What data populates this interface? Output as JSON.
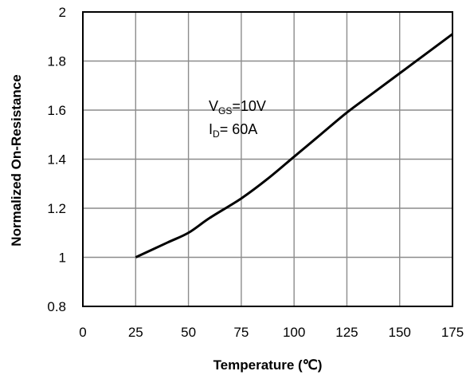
{
  "chart_data": {
    "type": "line",
    "title": "",
    "xlabel": "Temperature (℃)",
    "ylabel": "Normalized On-Resistance",
    "xlim": [
      0,
      175
    ],
    "ylim": [
      0.8,
      2
    ],
    "x_ticks": [
      "0",
      "25",
      "50",
      "75",
      "100",
      "125",
      "150",
      "175"
    ],
    "y_ticks": [
      "0.8",
      "1",
      "1.2",
      "1.4",
      "1.6",
      "1.8",
      "2"
    ],
    "grid": true,
    "annotation": {
      "line1": {
        "prefix": "V",
        "sub": "GS",
        "suffix": "=10V"
      },
      "line2": {
        "prefix": "I",
        "sub": "D",
        "suffix": "= 60A"
      }
    },
    "series": [
      {
        "x": [
          25,
          40,
          50,
          60,
          75,
          87.5,
          100,
          112.5,
          125,
          137.5,
          150,
          162.5,
          175
        ],
        "y": [
          1.0,
          1.06,
          1.1,
          1.16,
          1.24,
          1.32,
          1.41,
          1.5,
          1.59,
          1.67,
          1.75,
          1.83,
          1.91
        ]
      }
    ]
  }
}
